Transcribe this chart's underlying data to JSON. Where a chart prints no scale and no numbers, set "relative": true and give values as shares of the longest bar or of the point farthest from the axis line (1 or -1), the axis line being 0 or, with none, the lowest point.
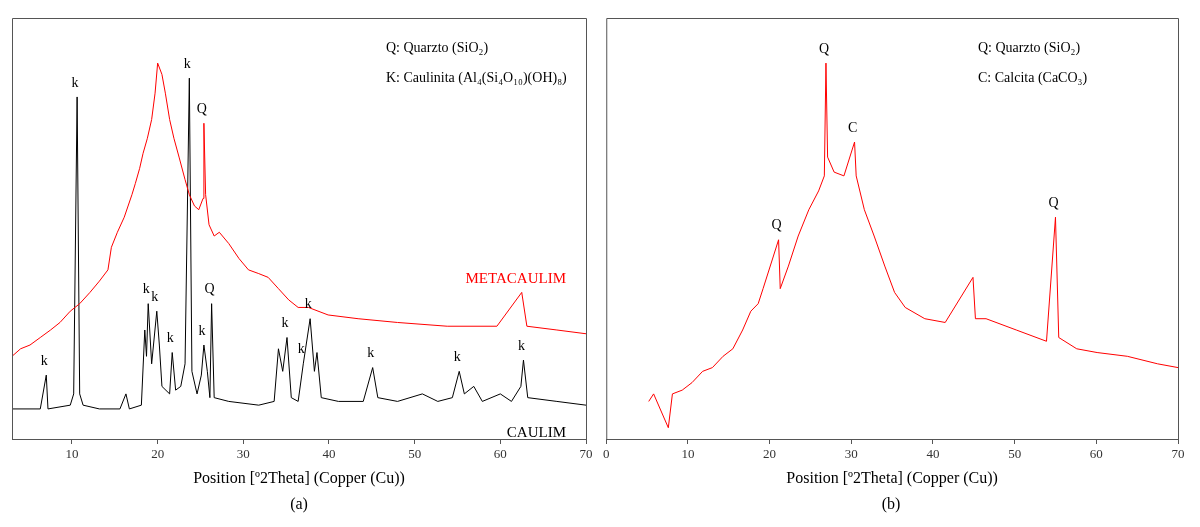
{
  "chart_data": [
    {
      "type": "line",
      "title": "(a)",
      "xlabel": "Position [º2Theta] (Copper (Cu))",
      "relative": true,
      "xlim": [
        3,
        70
      ],
      "xticks": [
        10,
        20,
        30,
        40,
        50,
        60,
        70
      ],
      "annotations": [
        "Q: Quarzto (SiO₂)",
        "K: Caulinita (Al₄(Si₄O₁₀)(OH)₈)",
        {
          "text": "k",
          "x": 7.0,
          "y": 0.17
        },
        {
          "text": "k",
          "x": 10.6,
          "y": 0.91
        },
        {
          "text": "k",
          "x": 23.7,
          "y": 0.96
        },
        {
          "text": "Q",
          "x": 25.4,
          "y": 0.84
        },
        {
          "text": "k",
          "x": 18.9,
          "y": 0.36
        },
        {
          "text": "k",
          "x": 19.9,
          "y": 0.34
        },
        {
          "text": "k",
          "x": 21.7,
          "y": 0.23
        },
        {
          "text": "Q",
          "x": 26.3,
          "y": 0.36
        },
        {
          "text": "k",
          "x": 25.4,
          "y": 0.25
        },
        {
          "text": "k",
          "x": 35.1,
          "y": 0.27
        },
        {
          "text": "k",
          "x": 37.0,
          "y": 0.2
        },
        {
          "text": "k",
          "x": 37.8,
          "y": 0.32
        },
        {
          "text": "k",
          "x": 45.1,
          "y": 0.19
        },
        {
          "text": "k",
          "x": 55.2,
          "y": 0.18
        },
        {
          "text": "k",
          "x": 62.7,
          "y": 0.21
        }
      ],
      "series": [
        {
          "name": "METACAULIM",
          "color": "#ff0000",
          "x": [
            3.0,
            4.0,
            5.1,
            6.3,
            7.5,
            8.6,
            9.8,
            10.9,
            12.1,
            13.2,
            14.2,
            14.6,
            15.3,
            16.1,
            17.0,
            17.4,
            17.9,
            18.3,
            18.8,
            19.3,
            19.7,
            20.0,
            20.5,
            20.9,
            21.4,
            21.9,
            22.5,
            23.2,
            23.7,
            24.3,
            24.8,
            25.3,
            25.4,
            25.6,
            26.0,
            26.6,
            27.2,
            28.3,
            29.5,
            30.6,
            31.8,
            32.9,
            34.1,
            35.3,
            36.4,
            37.6,
            39.9,
            43.4,
            48.0,
            53.8,
            59.6,
            62.5,
            63.1,
            66.6,
            70.0
          ],
          "values": [
            0.22,
            0.24,
            0.25,
            0.27,
            0.29,
            0.31,
            0.34,
            0.36,
            0.39,
            0.42,
            0.45,
            0.51,
            0.55,
            0.59,
            0.65,
            0.68,
            0.72,
            0.76,
            0.8,
            0.85,
            0.92,
            1,
            0.97,
            0.92,
            0.85,
            0.8,
            0.75,
            0.69,
            0.65,
            0.62,
            0.61,
            0.64,
            0.84,
            0.65,
            0.57,
            0.54,
            0.55,
            0.52,
            0.48,
            0.45,
            0.44,
            0.43,
            0.4,
            0.37,
            0.35,
            0.35,
            0.33,
            0.32,
            0.31,
            0.3,
            0.3,
            0.39,
            0.3,
            0.29,
            0.28
          ]
        },
        {
          "name": "CAULIM",
          "color": "#000000",
          "x": [
            3.0,
            6.3,
            7.0,
            7.2,
            9.8,
            10.2,
            10.6,
            10.9,
            11.3,
            13.2,
            15.6,
            16.3,
            16.7,
            18.1,
            18.5,
            18.7,
            18.9,
            19.3,
            19.9,
            20.2,
            20.5,
            21.4,
            21.7,
            22.1,
            22.7,
            23.2,
            23.7,
            24.0,
            24.6,
            25.1,
            25.4,
            25.8,
            26.1,
            26.3,
            26.6,
            28.3,
            31.8,
            33.6,
            34.1,
            34.6,
            35.1,
            35.6,
            36.4,
            37.0,
            37.8,
            38.3,
            38.6,
            39.1,
            41.1,
            44.0,
            45.1,
            45.7,
            48.0,
            50.9,
            52.7,
            54.4,
            55.2,
            55.8,
            56.9,
            57.9,
            60.0,
            61.3,
            62.4,
            62.7,
            63.2,
            66.6,
            70.0
          ],
          "values": [
            0.08,
            0.08,
            0.17,
            0.08,
            0.09,
            0.12,
            0.91,
            0.12,
            0.09,
            0.08,
            0.08,
            0.12,
            0.08,
            0.09,
            0.29,
            0.22,
            0.36,
            0.2,
            0.34,
            0.25,
            0.14,
            0.12,
            0.23,
            0.13,
            0.14,
            0.2,
            0.96,
            0.18,
            0.12,
            0.17,
            0.25,
            0.18,
            0.11,
            0.36,
            0.11,
            0.1,
            0.09,
            0.1,
            0.24,
            0.18,
            0.27,
            0.11,
            0.1,
            0.2,
            0.32,
            0.18,
            0.23,
            0.11,
            0.1,
            0.1,
            0.19,
            0.11,
            0.1,
            0.12,
            0.1,
            0.11,
            0.18,
            0.12,
            0.14,
            0.1,
            0.12,
            0.1,
            0.14,
            0.21,
            0.11,
            0.1,
            0.09
          ]
        }
      ]
    },
    {
      "type": "line",
      "title": "(b)",
      "xlabel": "Position [º2Theta] (Copper (Cu))",
      "relative": true,
      "xlim": [
        0,
        70
      ],
      "xticks": [
        0,
        10,
        20,
        30,
        40,
        50,
        60,
        70
      ],
      "annotations": [
        "Q: Quarzto (SiO₂)",
        "C: Calcita (CaCO₃)",
        {
          "text": "Q",
          "x": 26.9,
          "y": 1
        },
        {
          "text": "C",
          "x": 30.4,
          "y": 0.79
        },
        {
          "text": "Q",
          "x": 21.1,
          "y": 0.53
        },
        {
          "text": "Q",
          "x": 55.0,
          "y": 0.59
        }
      ],
      "series": [
        {
          "color": "#ff0000",
          "x": [
            5.2,
            5.8,
            7.6,
            8.1,
            9.3,
            10.5,
            11.8,
            13.0,
            14.3,
            15.5,
            16.7,
            17.7,
            18.6,
            19.2,
            21.1,
            21.3,
            22.3,
            23.5,
            24.8,
            26.0,
            26.7,
            26.9,
            27.1,
            27.9,
            29.1,
            30.4,
            30.6,
            31.6,
            32.8,
            34.1,
            35.3,
            36.6,
            39.0,
            41.5,
            44.9,
            45.2,
            46.5,
            50.2,
            53.9,
            55.0,
            55.4,
            57.6,
            60.1,
            63.8,
            67.5,
            70.0
          ],
          "values": [
            0.1,
            0.12,
            0.03,
            0.12,
            0.13,
            0.15,
            0.18,
            0.19,
            0.22,
            0.24,
            0.29,
            0.34,
            0.36,
            0.4,
            0.53,
            0.4,
            0.46,
            0.54,
            0.61,
            0.66,
            0.7,
            1,
            0.75,
            0.71,
            0.7,
            0.79,
            0.7,
            0.61,
            0.54,
            0.46,
            0.39,
            0.35,
            0.32,
            0.31,
            0.43,
            0.32,
            0.32,
            0.29,
            0.26,
            0.59,
            0.27,
            0.24,
            0.23,
            0.22,
            0.2,
            0.19
          ]
        }
      ]
    }
  ]
}
